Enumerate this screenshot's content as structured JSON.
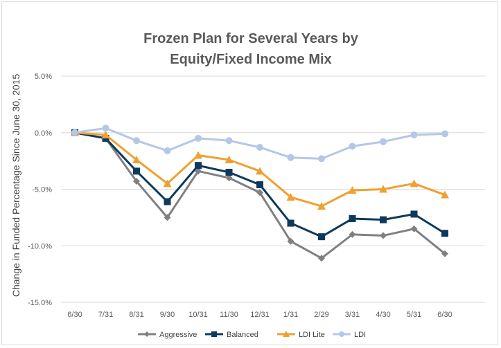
{
  "chart_data": {
    "type": "line",
    "title": [
      "Frozen Plan for Several Years by",
      "Equity/Fixed Income Mix"
    ],
    "xlabel": "",
    "ylabel": "Change in Funded Percentage Since June 30, 2015",
    "categories": [
      "6/30",
      "7/31",
      "8/31",
      "9/30",
      "10/31",
      "11/30",
      "12/31",
      "1/31",
      "2/29",
      "3/31",
      "4/30",
      "5/31",
      "6/30"
    ],
    "ylim": [
      -15.0,
      5.0
    ],
    "yticks": [
      5.0,
      0.0,
      -5.0,
      -10.0,
      -15.0
    ],
    "ytick_labels": [
      "5.0%",
      "0.0%",
      "-5.0%",
      "-10.0%",
      "-15.0%"
    ],
    "grid": true,
    "legend": "bottom",
    "series": [
      {
        "name": "Aggressive",
        "color": "#808080",
        "marker": "diamond",
        "values": [
          0.0,
          -0.5,
          -4.3,
          -7.5,
          -3.4,
          -4.0,
          -5.3,
          -9.6,
          -11.1,
          -9.0,
          -9.1,
          -8.5,
          -10.7
        ]
      },
      {
        "name": "Balanced",
        "color": "#0d3a5c",
        "marker": "square",
        "values": [
          0.0,
          -0.5,
          -3.4,
          -6.1,
          -2.9,
          -3.5,
          -4.6,
          -8.0,
          -9.2,
          -7.6,
          -7.7,
          -7.2,
          -8.9
        ]
      },
      {
        "name": "LDI Lite",
        "color": "#f0a030",
        "marker": "triangle",
        "values": [
          0.0,
          -0.2,
          -2.4,
          -4.5,
          -2.0,
          -2.4,
          -3.4,
          -5.7,
          -6.5,
          -5.1,
          -5.0,
          -4.5,
          -5.5
        ]
      },
      {
        "name": "LDI",
        "color": "#b4c7e7",
        "marker": "circle",
        "values": [
          0.0,
          0.4,
          -0.7,
          -1.6,
          -0.5,
          -0.7,
          -1.3,
          -2.2,
          -2.3,
          -1.2,
          -0.8,
          -0.2,
          -0.1
        ]
      }
    ]
  }
}
